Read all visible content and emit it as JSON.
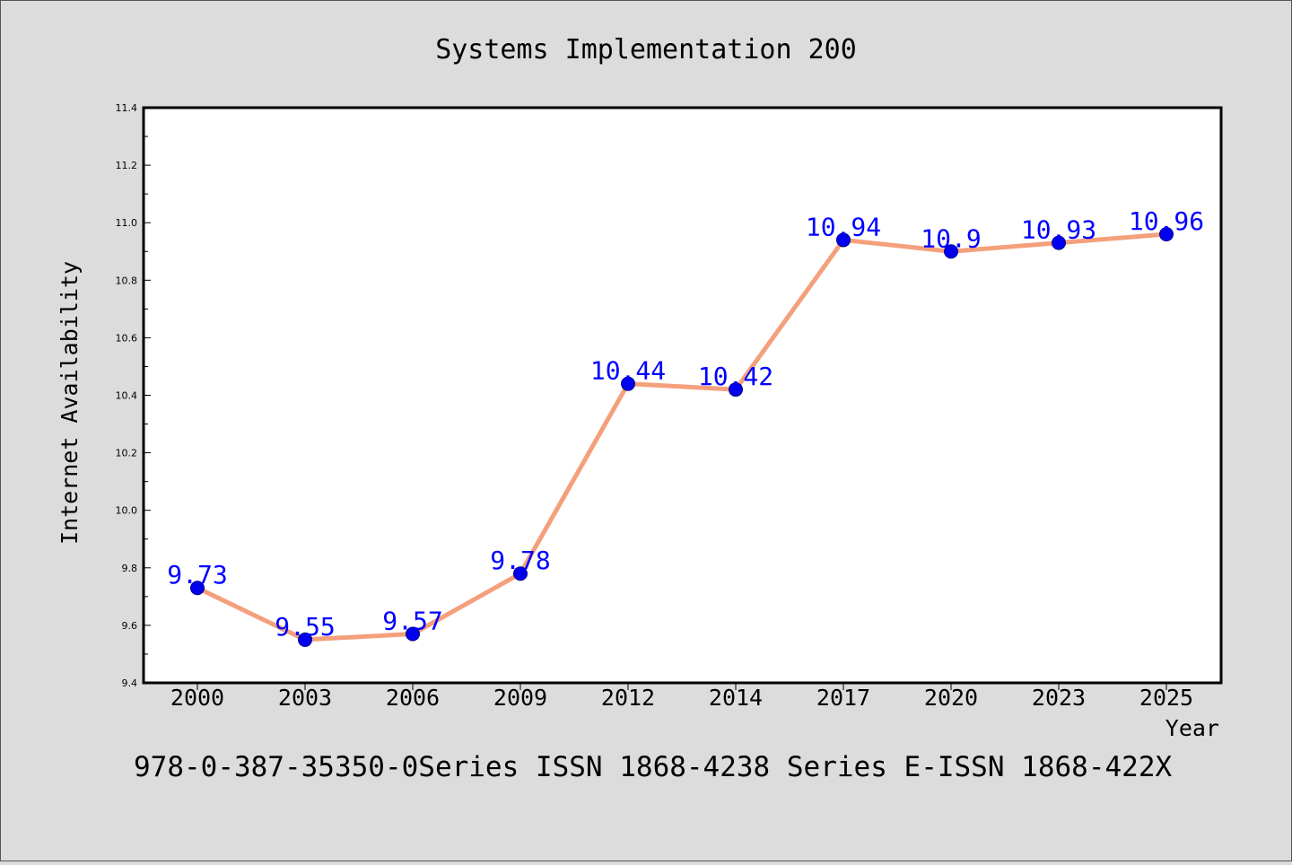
{
  "chart_data": {
    "type": "line",
    "title": "Systems Implementation 200",
    "xlabel": "Year",
    "ylabel": "Internet Availability",
    "categories": [
      "2000",
      "2003",
      "2006",
      "2009",
      "2012",
      "2014",
      "2017",
      "2020",
      "2023",
      "2025"
    ],
    "series": [
      {
        "values": [
          9.73,
          9.55,
          9.57,
          9.78,
          10.44,
          10.42,
          10.94,
          10.9,
          10.93,
          10.96
        ],
        "data_labels": [
          "9.73",
          "9.55",
          "9.57",
          "9.78",
          "10.44",
          "10.42",
          "10.94",
          "10.9",
          "10.93",
          "10.96"
        ]
      }
    ],
    "ylim": [
      9.4,
      11.4
    ],
    "yticks": [
      "9.4",
      "9.6",
      "9.8",
      "10.0",
      "10.2",
      "10.4",
      "10.6",
      "10.8",
      "11.0",
      "11.2",
      "11.4"
    ],
    "grid": false,
    "colors": {
      "line": "#f4a07c",
      "marker": "#0000ee",
      "data_label": "#0000ff",
      "background": "#dcdcdc",
      "plot_background": "#ffffff"
    }
  },
  "footer_text": "978-0-387-35350-0Series ISSN 1868-4238 Series E-ISSN 1868-422X"
}
